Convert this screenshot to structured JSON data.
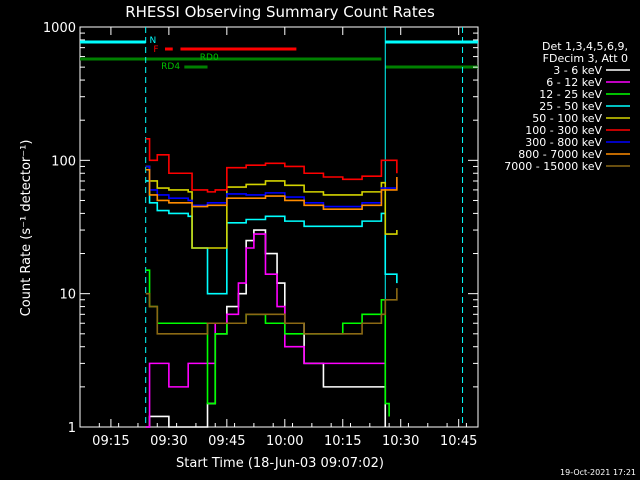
{
  "chart_data": {
    "type": "line",
    "title": "RHESSI Observing Summary Count Rates",
    "xlabel": "Start Time (18-Jun-03 09:07:02)",
    "ylabel": "Count Rate (s⁻¹ detector⁻¹)",
    "y_scale": "log",
    "ylim": [
      1,
      1000
    ],
    "xlim": [
      "09:07",
      "10:50"
    ],
    "x_ticks": [
      "09:15",
      "09:30",
      "09:45",
      "10:00",
      "10:15",
      "10:30",
      "10:45"
    ],
    "y_ticks": [
      "1",
      "10",
      "100",
      "1000"
    ],
    "timestamp": "19-Oct-2021 17:21",
    "legend_header": [
      "Det 1,3,4,5,6,9,",
      "FDecim 3, Att 0"
    ],
    "legend_position": "right",
    "flag_labels": [
      "N",
      "F",
      "RD0",
      "RD4"
    ],
    "colors": {
      "3-6": "#ffffff",
      "6-12": "#ff00ff",
      "12-25": "#00ff00",
      "25-50": "#00ffff",
      "50-100": "#d4d400",
      "100-300": "#ff0000",
      "300-800": "#0000ff",
      "800-7000": "#ff8c00",
      "7000-15000": "#8b6914"
    },
    "series": [
      {
        "name": "3 - 6 keV",
        "color": "#ffffff",
        "x": [
          "09:24",
          "09:25",
          "09:30",
          "09:35",
          "09:40",
          "09:42",
          "09:45",
          "09:48",
          "09:50",
          "09:52",
          "09:55",
          "09:58",
          "10:00",
          "10:05",
          "10:10",
          "10:15",
          "10:20",
          "10:25",
          "10:26"
        ],
        "y": [
          1,
          1.2,
          1,
          1,
          1.5,
          5,
          8,
          10,
          25,
          30,
          20,
          12,
          6,
          3,
          2,
          2,
          2,
          2,
          1
        ]
      },
      {
        "name": "6 - 12 keV",
        "color": "#ff00ff",
        "x": [
          "09:24",
          "09:25",
          "09:30",
          "09:35",
          "09:40",
          "09:42",
          "09:45",
          "09:48",
          "09:50",
          "09:52",
          "09:55",
          "09:58",
          "10:00",
          "10:05",
          "10:10",
          "10:15",
          "10:20",
          "10:25",
          "10:26"
        ],
        "y": [
          1,
          3,
          2,
          3,
          3,
          6,
          7,
          12,
          22,
          28,
          14,
          8,
          4,
          3,
          3,
          3,
          3,
          3,
          2
        ]
      },
      {
        "name": "12 - 25 keV",
        "color": "#00ff00",
        "x": [
          "09:24",
          "09:25",
          "09:27",
          "09:30",
          "09:35",
          "09:40",
          "09:42",
          "09:45",
          "09:50",
          "09:55",
          "10:00",
          "10:05",
          "10:10",
          "10:15",
          "10:20",
          "10:25",
          "10:26",
          "10:27"
        ],
        "y": [
          15,
          8,
          6,
          6,
          6,
          1.5,
          5,
          6,
          7,
          6,
          5,
          5,
          5,
          6,
          7,
          9,
          1.5,
          1.2
        ]
      },
      {
        "name": "25 - 50 keV",
        "color": "#00ffff",
        "x": [
          "09:24",
          "09:25",
          "09:27",
          "09:30",
          "09:35",
          "09:36",
          "09:40",
          "09:42",
          "09:45",
          "09:50",
          "09:55",
          "10:00",
          "10:05",
          "10:10",
          "10:15",
          "10:20",
          "10:25",
          "10:26",
          "10:29"
        ],
        "y": [
          70,
          48,
          42,
          40,
          38,
          22,
          10,
          10,
          34,
          36,
          38,
          35,
          32,
          32,
          32,
          35,
          40,
          14,
          12
        ]
      },
      {
        "name": "50 - 100 keV",
        "color": "#d4d400",
        "x": [
          "09:24",
          "09:25",
          "09:27",
          "09:30",
          "09:35",
          "09:36",
          "09:40",
          "09:42",
          "09:45",
          "09:50",
          "09:55",
          "10:00",
          "10:05",
          "10:10",
          "10:15",
          "10:20",
          "10:25",
          "10:26",
          "10:29"
        ],
        "y": [
          90,
          70,
          62,
          60,
          58,
          22,
          22,
          22,
          63,
          66,
          70,
          65,
          58,
          55,
          55,
          58,
          68,
          28,
          30
        ]
      },
      {
        "name": "100 - 300 keV",
        "color": "#ff0000",
        "x": [
          "09:24",
          "09:25",
          "09:27",
          "09:30",
          "09:35",
          "09:36",
          "09:40",
          "09:42",
          "09:45",
          "09:50",
          "09:55",
          "10:00",
          "10:05",
          "10:10",
          "10:15",
          "10:20",
          "10:25",
          "10:29"
        ],
        "y": [
          145,
          100,
          110,
          80,
          80,
          60,
          58,
          60,
          88,
          92,
          95,
          90,
          80,
          75,
          72,
          76,
          100,
          80
        ]
      },
      {
        "name": "300 - 800 keV",
        "color": "#0000ff",
        "x": [
          "09:24",
          "09:25",
          "09:27",
          "09:30",
          "09:35",
          "09:36",
          "09:40",
          "09:42",
          "09:45",
          "09:50",
          "09:55",
          "10:00",
          "10:05",
          "10:10",
          "10:15",
          "10:20",
          "10:25",
          "10:29"
        ],
        "y": [
          90,
          60,
          55,
          52,
          50,
          46,
          48,
          48,
          56,
          55,
          57,
          53,
          48,
          45,
          45,
          48,
          62,
          72
        ]
      },
      {
        "name": "800 - 7000 keV",
        "color": "#ff8c00",
        "x": [
          "09:24",
          "09:25",
          "09:27",
          "09:30",
          "09:35",
          "09:36",
          "09:40",
          "09:42",
          "09:45",
          "09:50",
          "09:55",
          "10:00",
          "10:05",
          "10:10",
          "10:15",
          "10:20",
          "10:25",
          "10:29"
        ],
        "y": [
          85,
          55,
          50,
          48,
          48,
          45,
          46,
          46,
          52,
          52,
          54,
          50,
          46,
          43,
          43,
          46,
          60,
          75
        ]
      },
      {
        "name": "7000 - 15000 keV",
        "color": "#8b6914",
        "x": [
          "09:24",
          "09:25",
          "09:27",
          "09:30",
          "09:35",
          "09:40",
          "09:45",
          "09:50",
          "09:55",
          "10:00",
          "10:05",
          "10:10",
          "10:15",
          "10:20",
          "10:25",
          "10:26",
          "10:29"
        ],
        "y": [
          10,
          8,
          5,
          5,
          5,
          6,
          6,
          7,
          7,
          6,
          5,
          5,
          5,
          6,
          7,
          9,
          11
        ]
      }
    ],
    "flags": {
      "N": {
        "segments": [
          [
            "09:07",
            "09:24"
          ],
          [
            "10:26",
            "10:50"
          ]
        ],
        "color": "#00ffff"
      },
      "F": {
        "segments": [
          [
            "09:29",
            "09:31"
          ],
          [
            "09:33",
            "10:03"
          ]
        ],
        "color": "#ff0000"
      },
      "RD0": {
        "segments": [
          [
            "09:07",
            "10:25"
          ]
        ],
        "color": "#008000"
      },
      "RD4": {
        "segments": [
          [
            "09:34",
            "09:40"
          ],
          [
            "10:26",
            "10:50"
          ]
        ],
        "color": "#008000"
      }
    },
    "vlines": {
      "cyan_dashed": [
        "09:24",
        "10:46"
      ],
      "cyan_solid": [
        "10:26"
      ]
    }
  }
}
